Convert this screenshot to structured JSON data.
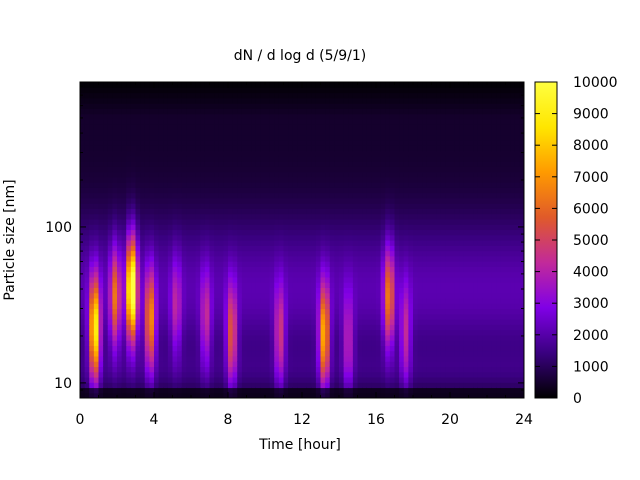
{
  "chart_data": {
    "type": "heatmap",
    "title": "dN / d log d (5/9/1)",
    "xlabel": "Time [hour]",
    "ylabel": "Particle size [nm]",
    "xlim": [
      0,
      24
    ],
    "ylim": [
      8,
      850
    ],
    "y_scale": "log",
    "x_ticks": [
      0,
      4,
      8,
      12,
      16,
      20,
      24
    ],
    "x_tick_labels": [
      "0",
      "4",
      "8",
      "12",
      "16",
      "20",
      "24"
    ],
    "y_ticks": [
      10,
      100
    ],
    "y_tick_labels": [
      "10",
      "100"
    ],
    "colorbar": {
      "range": [
        0,
        10000
      ],
      "ticks": [
        0,
        1000,
        2000,
        3000,
        4000,
        5000,
        6000,
        7000,
        8000,
        9000,
        10000
      ],
      "tick_labels": [
        "0",
        "1000",
        "2000",
        "3000",
        "4000",
        "5000",
        "6000",
        "7000",
        "8000",
        "9000",
        "10000"
      ],
      "palette": [
        "#000000",
        "#3a0080",
        "#8000e6",
        "#c22a9a",
        "#e05a2a",
        "#ff9a00",
        "#ffe600",
        "#ffff40"
      ]
    },
    "background_level": 1600,
    "events": [
      {
        "time": 0.8,
        "center_nm": 22,
        "peak": 7800
      },
      {
        "time": 1.9,
        "center_nm": 35,
        "peak": 4300
      },
      {
        "time": 2.8,
        "center_nm": 40,
        "peak": 9200
      },
      {
        "time": 3.8,
        "center_nm": 25,
        "peak": 5200
      },
      {
        "time": 5.2,
        "center_nm": 30,
        "peak": 2300
      },
      {
        "time": 6.8,
        "center_nm": 25,
        "peak": 2600
      },
      {
        "time": 8.2,
        "center_nm": 20,
        "peak": 4100
      },
      {
        "time": 10.8,
        "center_nm": 20,
        "peak": 3200
      },
      {
        "time": 13.2,
        "center_nm": 20,
        "peak": 6200
      },
      {
        "time": 14.5,
        "center_nm": 18,
        "peak": 2600
      },
      {
        "time": 16.7,
        "center_nm": 35,
        "peak": 4600
      },
      {
        "time": 17.6,
        "center_nm": 20,
        "peak": 2700
      }
    ]
  }
}
